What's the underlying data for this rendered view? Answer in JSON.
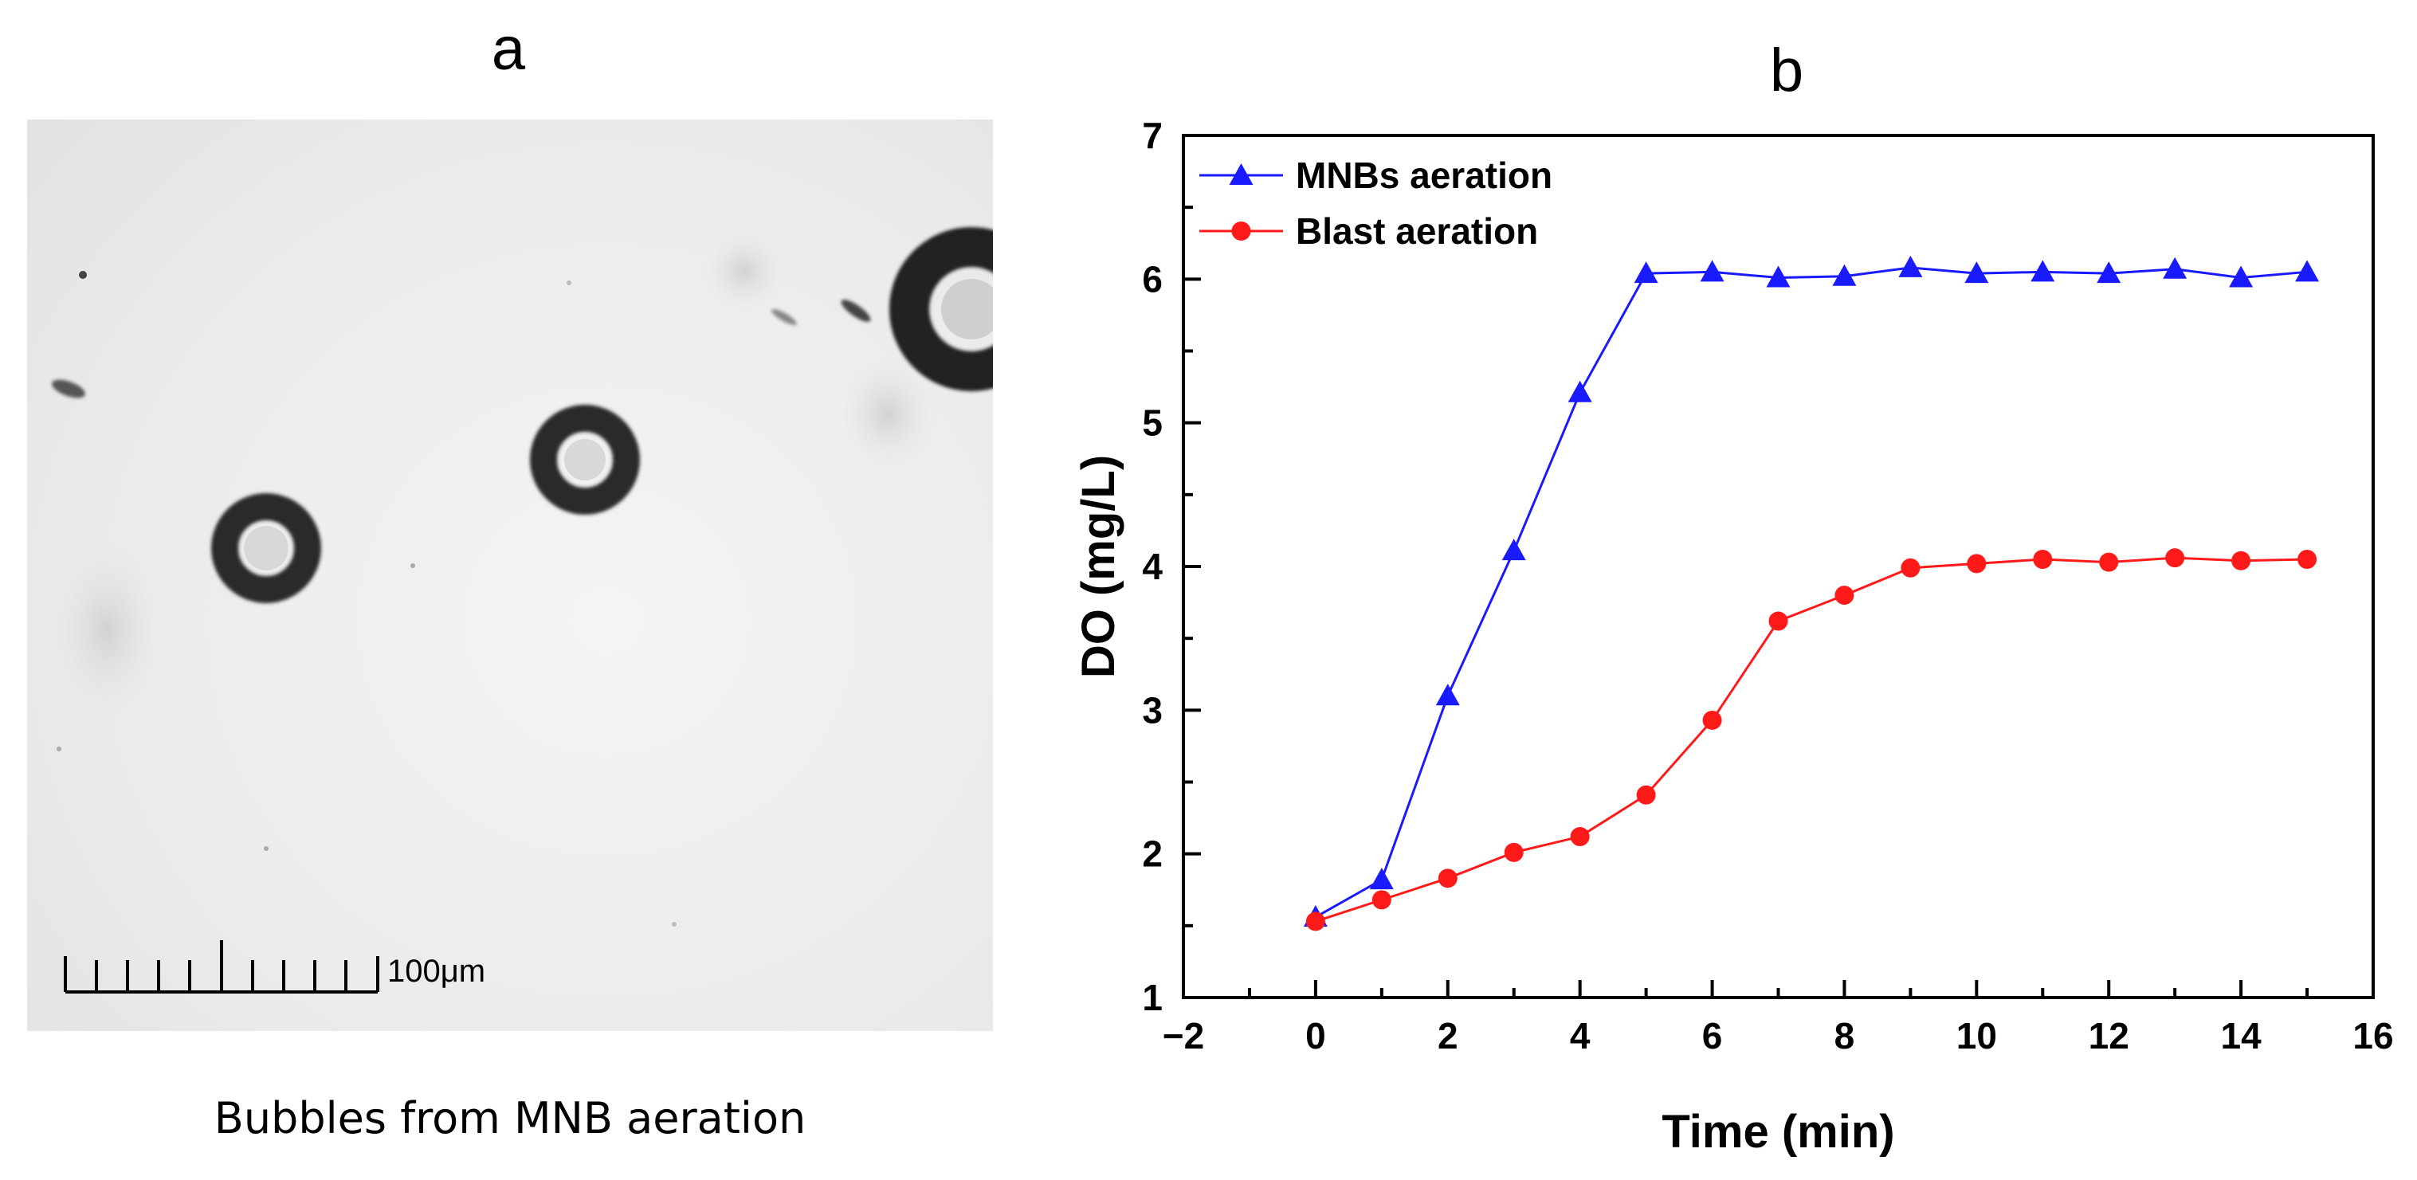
{
  "panel_a": {
    "letter": "a",
    "caption": "Bubbles from MNB aeration",
    "scale_bar_label": "100μm"
  },
  "panel_b": {
    "letter": "b"
  },
  "colors": {
    "mnb": "#1a1aff",
    "blast": "#ff1a1a",
    "axis": "#000000"
  },
  "chart_data": {
    "type": "line",
    "title": "",
    "xlabel": "Time (min)",
    "ylabel": "DO (mg/L)",
    "xlim": [
      -2,
      16
    ],
    "ylim": [
      1,
      7
    ],
    "xticks": [
      -2,
      0,
      2,
      4,
      6,
      8,
      10,
      12,
      14,
      16
    ],
    "xtick_labels": [
      "−2",
      "0",
      "2",
      "4",
      "6",
      "8",
      "10",
      "12",
      "14",
      "16"
    ],
    "yticks": [
      1,
      2,
      3,
      4,
      5,
      6,
      7
    ],
    "ytick_labels": [
      "1",
      "2",
      "3",
      "4",
      "5",
      "6",
      "7"
    ],
    "legend_position": "top-left",
    "x": [
      0,
      1,
      2,
      3,
      4,
      5,
      6,
      7,
      8,
      9,
      10,
      11,
      12,
      13,
      14,
      15
    ],
    "series": [
      {
        "name": "MNBs aeration",
        "marker": "triangle",
        "color": "#1a1aff",
        "values": [
          1.56,
          1.82,
          3.1,
          4.11,
          5.21,
          6.04,
          6.05,
          6.01,
          6.02,
          6.08,
          6.04,
          6.05,
          6.04,
          6.07,
          6.01,
          6.05
        ]
      },
      {
        "name": "Blast aeration",
        "marker": "circle",
        "color": "#ff1a1a",
        "values": [
          1.53,
          1.68,
          1.83,
          2.01,
          2.12,
          2.41,
          2.93,
          3.62,
          3.8,
          3.99,
          4.02,
          4.05,
          4.03,
          4.06,
          4.04,
          4.05
        ]
      }
    ]
  }
}
